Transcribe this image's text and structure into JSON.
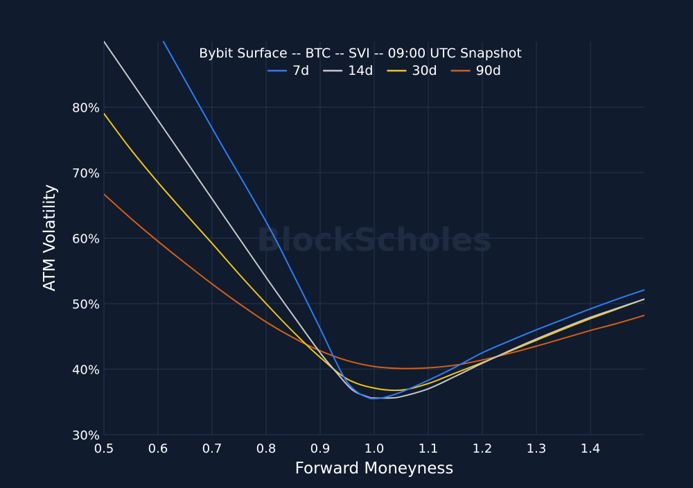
{
  "chart_data": {
    "type": "line",
    "title": "Bybit Surface -- BTC -- SVI -- 09:00 UTC Snapshot",
    "xlabel": "Forward Moneyness",
    "ylabel": "ATM Volatility",
    "watermark": "BlockScholes",
    "xlim": [
      0.5,
      1.5
    ],
    "ylim": [
      0.3,
      0.9
    ],
    "x_ticks": [
      {
        "value": 0.5,
        "label": "0.5"
      },
      {
        "value": 0.6,
        "label": "0.6"
      },
      {
        "value": 0.7,
        "label": "0.7"
      },
      {
        "value": 0.8,
        "label": "0.8"
      },
      {
        "value": 0.9,
        "label": "0.9"
      },
      {
        "value": 1.0,
        "label": "1.0"
      },
      {
        "value": 1.1,
        "label": "1.1"
      },
      {
        "value": 1.2,
        "label": "1.2"
      },
      {
        "value": 1.3,
        "label": "1.3"
      },
      {
        "value": 1.4,
        "label": "1.4"
      }
    ],
    "y_ticks": [
      {
        "value": 0.3,
        "label": "30%"
      },
      {
        "value": 0.4,
        "label": "40%"
      },
      {
        "value": 0.5,
        "label": "50%"
      },
      {
        "value": 0.6,
        "label": "60%"
      },
      {
        "value": 0.7,
        "label": "70%"
      },
      {
        "value": 0.8,
        "label": "80%"
      }
    ],
    "grid": true,
    "legend_position": "top-center",
    "colors": {
      "background": "#101b2e",
      "grid": "#24344f",
      "text": "#ffffff",
      "watermark": "#1e2b40"
    },
    "series": [
      {
        "name": "7d",
        "color": "#2f7cf6",
        "points": [
          [
            0.61,
            0.9
          ],
          [
            0.7,
            0.768
          ],
          [
            0.8,
            0.625
          ],
          [
            0.85,
            0.545
          ],
          [
            0.9,
            0.462
          ],
          [
            0.93,
            0.41
          ],
          [
            0.95,
            0.38
          ],
          [
            0.97,
            0.364
          ],
          [
            0.99,
            0.356
          ],
          [
            1.0,
            0.355
          ],
          [
            1.02,
            0.357
          ],
          [
            1.05,
            0.365
          ],
          [
            1.1,
            0.383
          ],
          [
            1.15,
            0.403
          ],
          [
            1.2,
            0.425
          ],
          [
            1.25,
            0.443
          ],
          [
            1.3,
            0.46
          ],
          [
            1.35,
            0.476
          ],
          [
            1.4,
            0.492
          ],
          [
            1.45,
            0.507
          ],
          [
            1.5,
            0.521
          ]
        ]
      },
      {
        "name": "14d",
        "color": "#c8c8c8",
        "points": [
          [
            0.5,
            0.9
          ],
          [
            0.6,
            0.78
          ],
          [
            0.7,
            0.66
          ],
          [
            0.8,
            0.54
          ],
          [
            0.85,
            0.482
          ],
          [
            0.9,
            0.425
          ],
          [
            0.93,
            0.395
          ],
          [
            0.96,
            0.368
          ],
          [
            0.99,
            0.357
          ],
          [
            1.0,
            0.356
          ],
          [
            1.03,
            0.356
          ],
          [
            1.05,
            0.358
          ],
          [
            1.1,
            0.37
          ],
          [
            1.15,
            0.389
          ],
          [
            1.2,
            0.409
          ],
          [
            1.25,
            0.428
          ],
          [
            1.3,
            0.446
          ],
          [
            1.35,
            0.463
          ],
          [
            1.4,
            0.479
          ],
          [
            1.45,
            0.493
          ],
          [
            1.5,
            0.507
          ]
        ]
      },
      {
        "name": "30d",
        "color": "#f2c518",
        "points": [
          [
            0.5,
            0.79
          ],
          [
            0.55,
            0.735
          ],
          [
            0.6,
            0.685
          ],
          [
            0.65,
            0.638
          ],
          [
            0.7,
            0.592
          ],
          [
            0.75,
            0.545
          ],
          [
            0.8,
            0.5
          ],
          [
            0.85,
            0.457
          ],
          [
            0.9,
            0.418
          ],
          [
            0.95,
            0.385
          ],
          [
            1.0,
            0.371
          ],
          [
            1.05,
            0.368
          ],
          [
            1.1,
            0.378
          ],
          [
            1.15,
            0.394
          ],
          [
            1.2,
            0.41
          ],
          [
            1.25,
            0.427
          ],
          [
            1.3,
            0.444
          ],
          [
            1.35,
            0.461
          ],
          [
            1.4,
            0.477
          ],
          [
            1.45,
            0.492
          ],
          [
            1.5,
            0.507
          ]
        ]
      },
      {
        "name": "90d",
        "color": "#d75f12",
        "points": [
          [
            0.5,
            0.667
          ],
          [
            0.55,
            0.63
          ],
          [
            0.6,
            0.595
          ],
          [
            0.65,
            0.562
          ],
          [
            0.7,
            0.53
          ],
          [
            0.75,
            0.5
          ],
          [
            0.8,
            0.472
          ],
          [
            0.85,
            0.448
          ],
          [
            0.9,
            0.428
          ],
          [
            0.95,
            0.413
          ],
          [
            1.0,
            0.404
          ],
          [
            1.05,
            0.401
          ],
          [
            1.1,
            0.402
          ],
          [
            1.15,
            0.406
          ],
          [
            1.2,
            0.414
          ],
          [
            1.25,
            0.424
          ],
          [
            1.3,
            0.435
          ],
          [
            1.35,
            0.447
          ],
          [
            1.4,
            0.459
          ],
          [
            1.45,
            0.47
          ],
          [
            1.5,
            0.482
          ]
        ]
      }
    ]
  }
}
